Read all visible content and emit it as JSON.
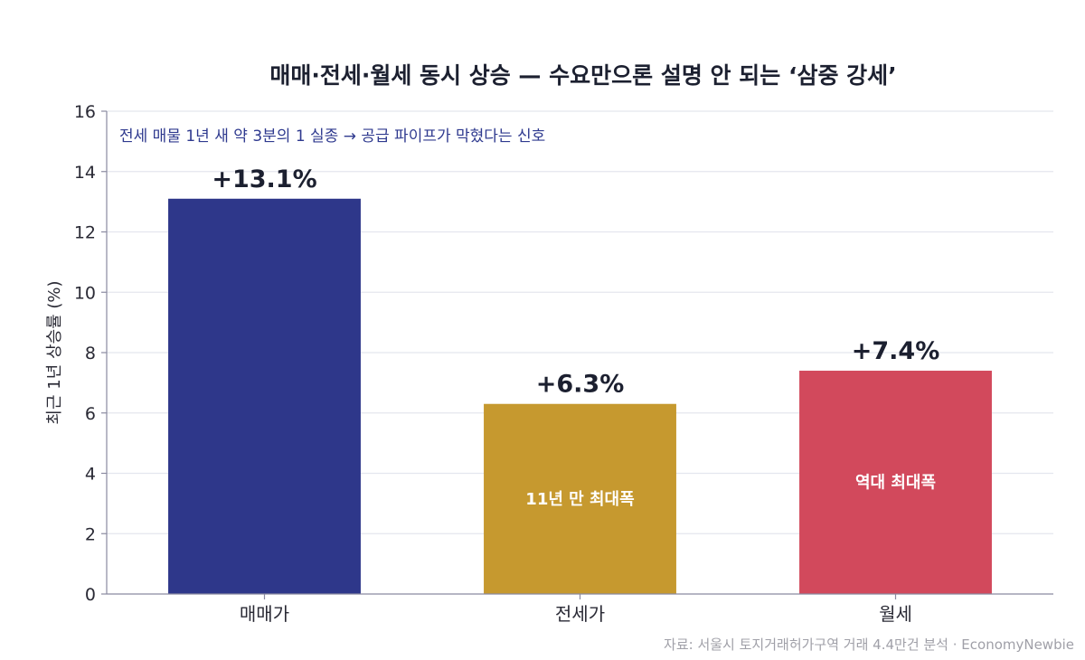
{
  "chart_data": {
    "type": "bar",
    "title": "매매·전세·월세 동시 상승 — 수요만으론 설명 안 되는 ‘삼중 강세’",
    "ylabel": "최근 1년 상승률 (%)",
    "xlabel": "",
    "ylim": [
      0,
      16
    ],
    "yticks": [
      0,
      2,
      4,
      6,
      8,
      10,
      12,
      14,
      16
    ],
    "categories": [
      "매매가",
      "전세가",
      "월세"
    ],
    "values": [
      13.1,
      6.3,
      7.4
    ],
    "value_labels": [
      "+13.1%",
      "+6.3%",
      "+7.4%"
    ],
    "bar_notes": [
      "",
      "11년 만 최대폭",
      "역대 최대폭"
    ],
    "colors": [
      "#2e378a",
      "#c6992f",
      "#d2495c"
    ],
    "annotation": "전세 매물 1년 새 약 3분의 1 실종 → 공급 파이프가 막혔다는 신호",
    "source": "자료: 서울시 토지거래허가구역 거래 4.4만건 분석 · EconomyNewbie",
    "grid": true,
    "legend": "none"
  }
}
